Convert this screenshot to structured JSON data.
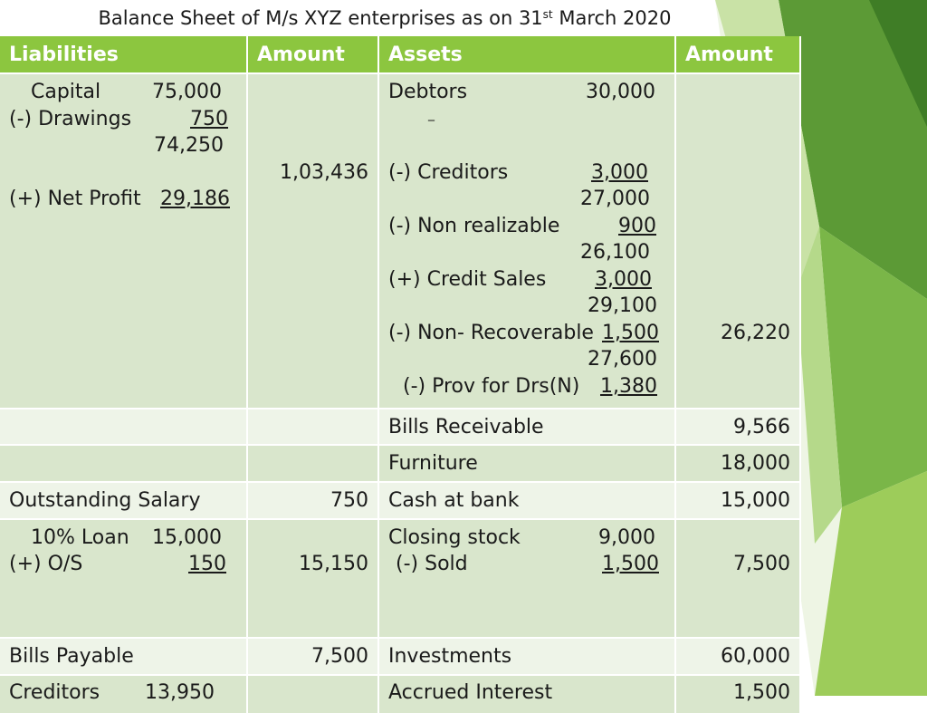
{
  "title": {
    "main": "Balance Sheet of M/s XYZ enterprises as on 31",
    "sup": "st",
    "tail": "March 2020"
  },
  "headers": {
    "liabilities": "Liabilities",
    "amount1": "Amount",
    "assets": "Assets",
    "amount2": "Amount"
  },
  "rows": {
    "capital": {
      "capital_label": "Capital",
      "capital_value": "75,000",
      "drawings_label": "(-) Drawings",
      "drawings_value": "750",
      "subtotal": "74,250",
      "net_profit_label": "(+) Net Profit",
      "net_profit_value": "29,186",
      "amount": "1,03,436",
      "debtors_label": "Debtors",
      "debtors_value": "30,000",
      "dash": "_",
      "creditors_label": "(-) Creditors",
      "creditors_value": "3,000",
      "sub1": "27,000",
      "non_realizable_label": "(-) Non realizable",
      "non_realizable_value": "900",
      "sub2": "26,100",
      "credit_sales_label": "(+) Credit Sales",
      "credit_sales_value": "3,000",
      "sub3": "29,100",
      "non_recoverable_label": "(-) Non- Recoverable",
      "non_recoverable_value": "1,500",
      "sub4": "27,600",
      "prov_label": "(-) Prov for Drs(N)",
      "prov_value": "1,380",
      "assets_amount": "26,220"
    },
    "bills_receivable": {
      "label": "Bills Receivable",
      "amount": "9,566"
    },
    "furniture": {
      "label": "Furniture",
      "amount": "18,000"
    },
    "salary": {
      "liability": "Outstanding Salary",
      "liability_amount": "750",
      "asset": "Cash at bank",
      "asset_amount": "15,000"
    },
    "loan": {
      "loan_label": "10% Loan",
      "loan_value": "15,000",
      "os_label": "(+) O/S",
      "os_value": "150",
      "amount": "15,150",
      "stock_label": "Closing stock",
      "stock_value": "9,000",
      "sold_label": "(-) Sold",
      "sold_value": "1,500",
      "asset_amount": "7,500"
    },
    "bills_payable": {
      "liability": "Bills Payable",
      "liability_amount": "7,500",
      "asset": "Investments",
      "asset_amount": "60,000"
    },
    "creditors": {
      "liability": "Creditors",
      "liability_value": "13,950",
      "asset": "Accrued Interest",
      "asset_amount": "1,500"
    }
  },
  "colors": {
    "header_green": "#8cc63f",
    "row_dark": "#d9e6cc",
    "row_light": "#eef4e8",
    "deco_green_dark": "#4d8a2e",
    "deco_green_light": "#8cc63f"
  }
}
